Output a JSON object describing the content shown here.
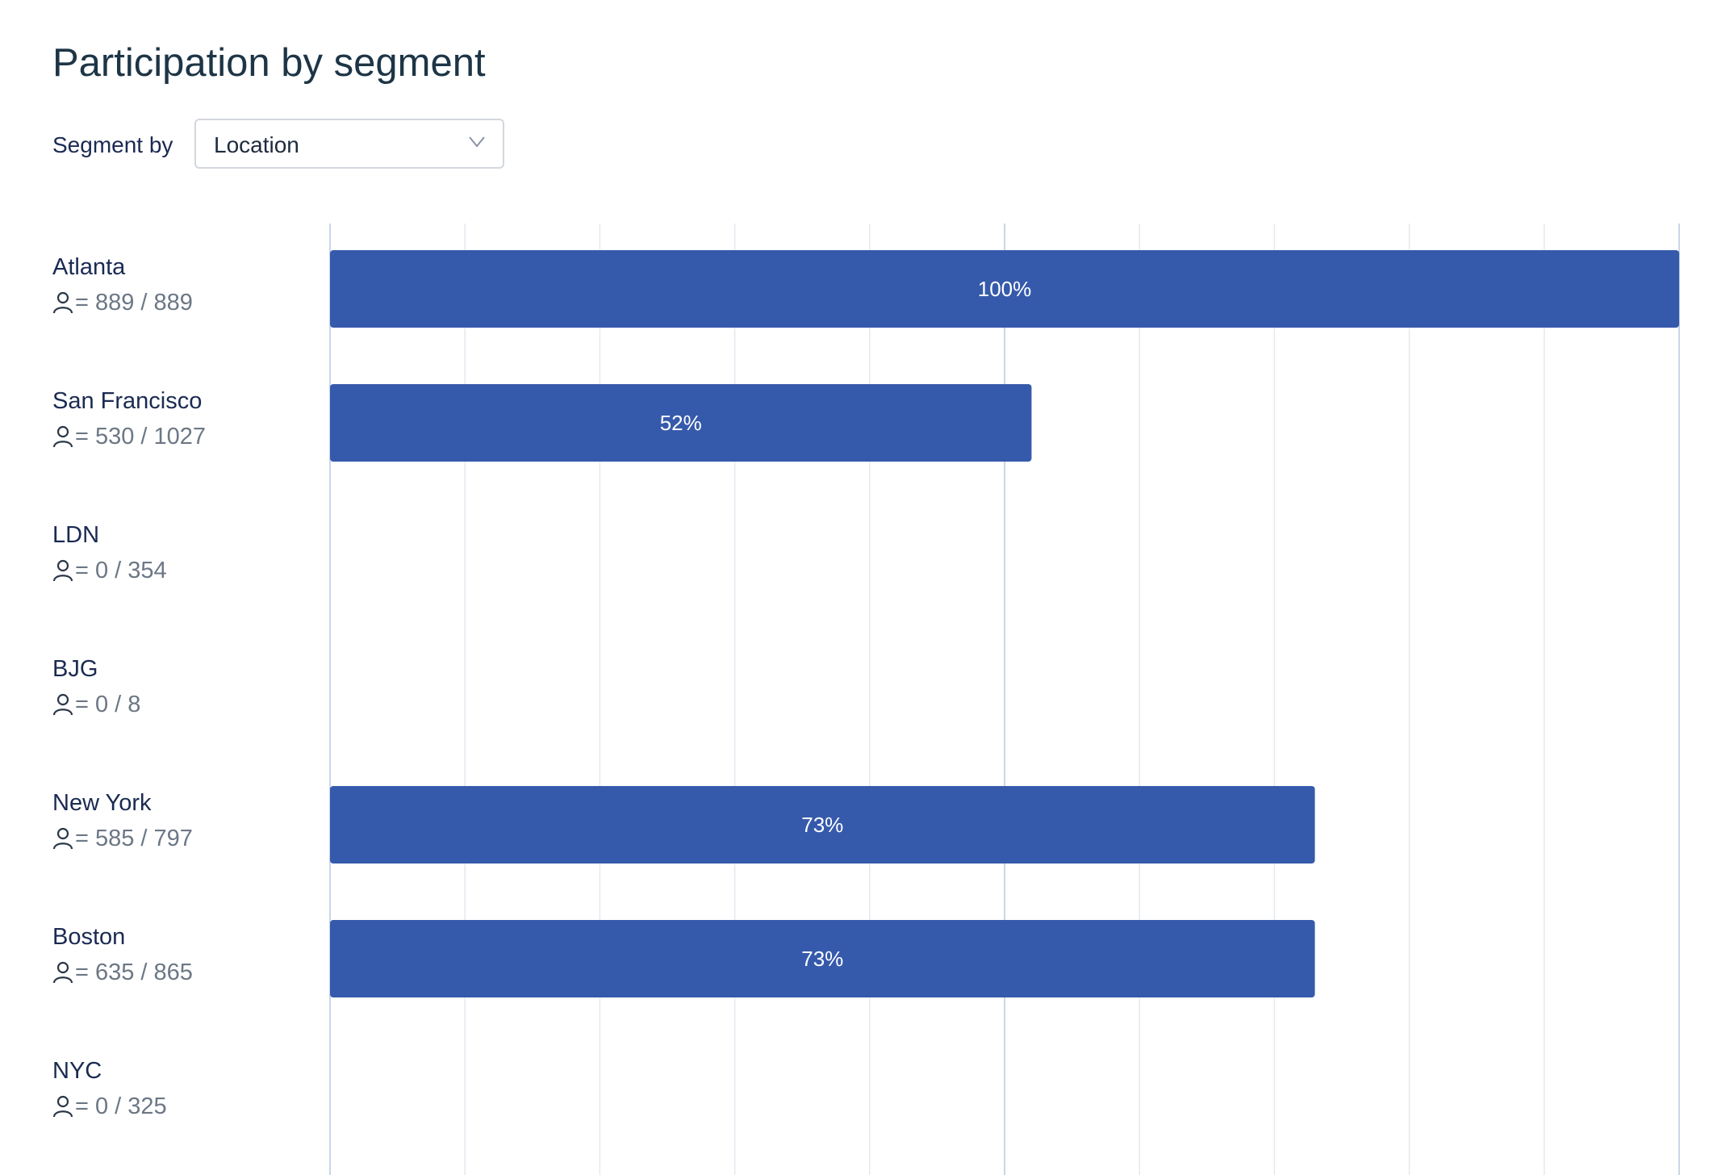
{
  "title": "Participation by segment",
  "segment": {
    "label": "Segment by",
    "selected": "Location"
  },
  "colors": {
    "bar": "#365aab",
    "grid": "#e4e9f0",
    "grid_major": "#c9d6e6",
    "title": "#1d3546"
  },
  "icons": {
    "count": "user-icon",
    "dropdown": "chevron-down-icon"
  },
  "chart_data": {
    "type": "bar",
    "orientation": "horizontal",
    "xlim": [
      0,
      100
    ],
    "grid": true,
    "categories": [
      "Atlanta",
      "San Francisco",
      "LDN",
      "BJG",
      "New York",
      "Boston",
      "NYC"
    ],
    "counts": [
      "= 889 / 889",
      "= 530 / 1027",
      "= 0 / 354",
      "= 0 / 8",
      "= 585 / 797",
      "= 635 / 865",
      "= 0 / 325"
    ],
    "values": [
      100,
      52,
      0,
      0,
      73,
      73,
      0
    ],
    "data_labels": [
      "100%",
      "52%",
      "",
      "",
      "73%",
      "73%",
      ""
    ]
  }
}
